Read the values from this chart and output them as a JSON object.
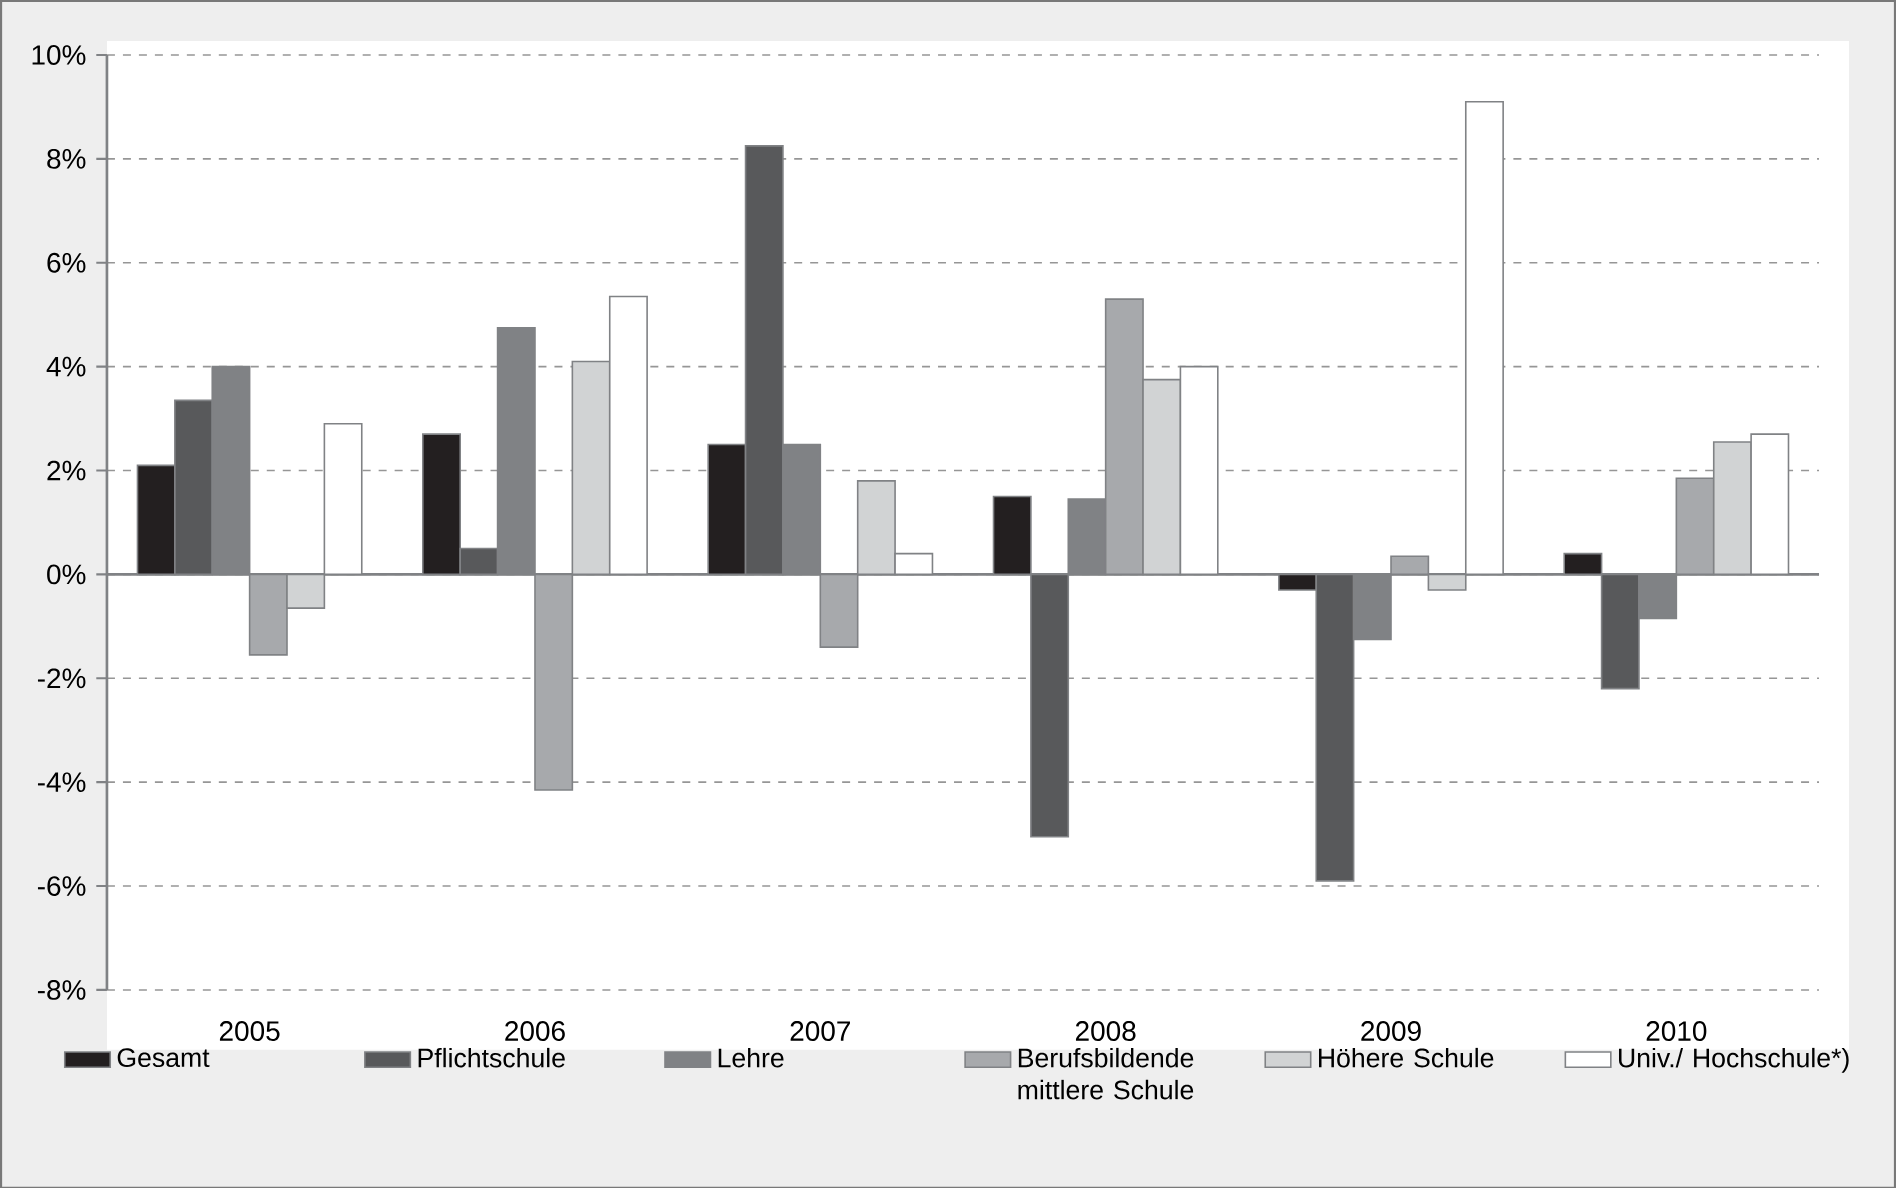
{
  "chart_data": {
    "type": "bar",
    "categories": [
      "2005",
      "2006",
      "2007",
      "2008",
      "2009",
      "2010"
    ],
    "series": [
      {
        "name": "Gesamt",
        "color": "#231f20",
        "values": [
          2.1,
          2.7,
          2.5,
          1.5,
          -0.3,
          0.4
        ]
      },
      {
        "name": "Pflichtschule",
        "color": "#58595b",
        "values": [
          3.35,
          0.5,
          8.25,
          -5.05,
          -5.9,
          -2.2
        ]
      },
      {
        "name": "Lehre",
        "color": "#808285",
        "values": [
          4.0,
          4.75,
          2.5,
          1.45,
          -1.25,
          -0.85
        ]
      },
      {
        "name": "Berufsbildende mittlere Schule",
        "color": "#a7a9ac",
        "values": [
          -1.55,
          -4.15,
          -1.4,
          5.3,
          0.35,
          1.85
        ]
      },
      {
        "name": "Höhere Schule",
        "color": "#d1d3d4",
        "values": [
          -0.65,
          4.1,
          1.8,
          3.75,
          -0.3,
          2.55
        ]
      },
      {
        "name": "Univ./ Hochschule*)",
        "color": "#ffffff",
        "values": [
          2.9,
          5.35,
          0.4,
          4.0,
          9.1,
          2.7
        ]
      }
    ],
    "ylim": [
      -8,
      10
    ],
    "yticks": [
      {
        "value": -8,
        "label": "-8%"
      },
      {
        "value": -6,
        "label": "-6%"
      },
      {
        "value": -4,
        "label": "-4%"
      },
      {
        "value": -2,
        "label": "-2%"
      },
      {
        "value": 0,
        "label": "0%"
      },
      {
        "value": 2,
        "label": "2%"
      },
      {
        "value": 4,
        "label": "4%"
      },
      {
        "value": 6,
        "label": "6%"
      },
      {
        "value": 8,
        "label": "8%"
      },
      {
        "value": 10,
        "label": "10%"
      }
    ],
    "grid": "y",
    "legend": "bottom"
  }
}
